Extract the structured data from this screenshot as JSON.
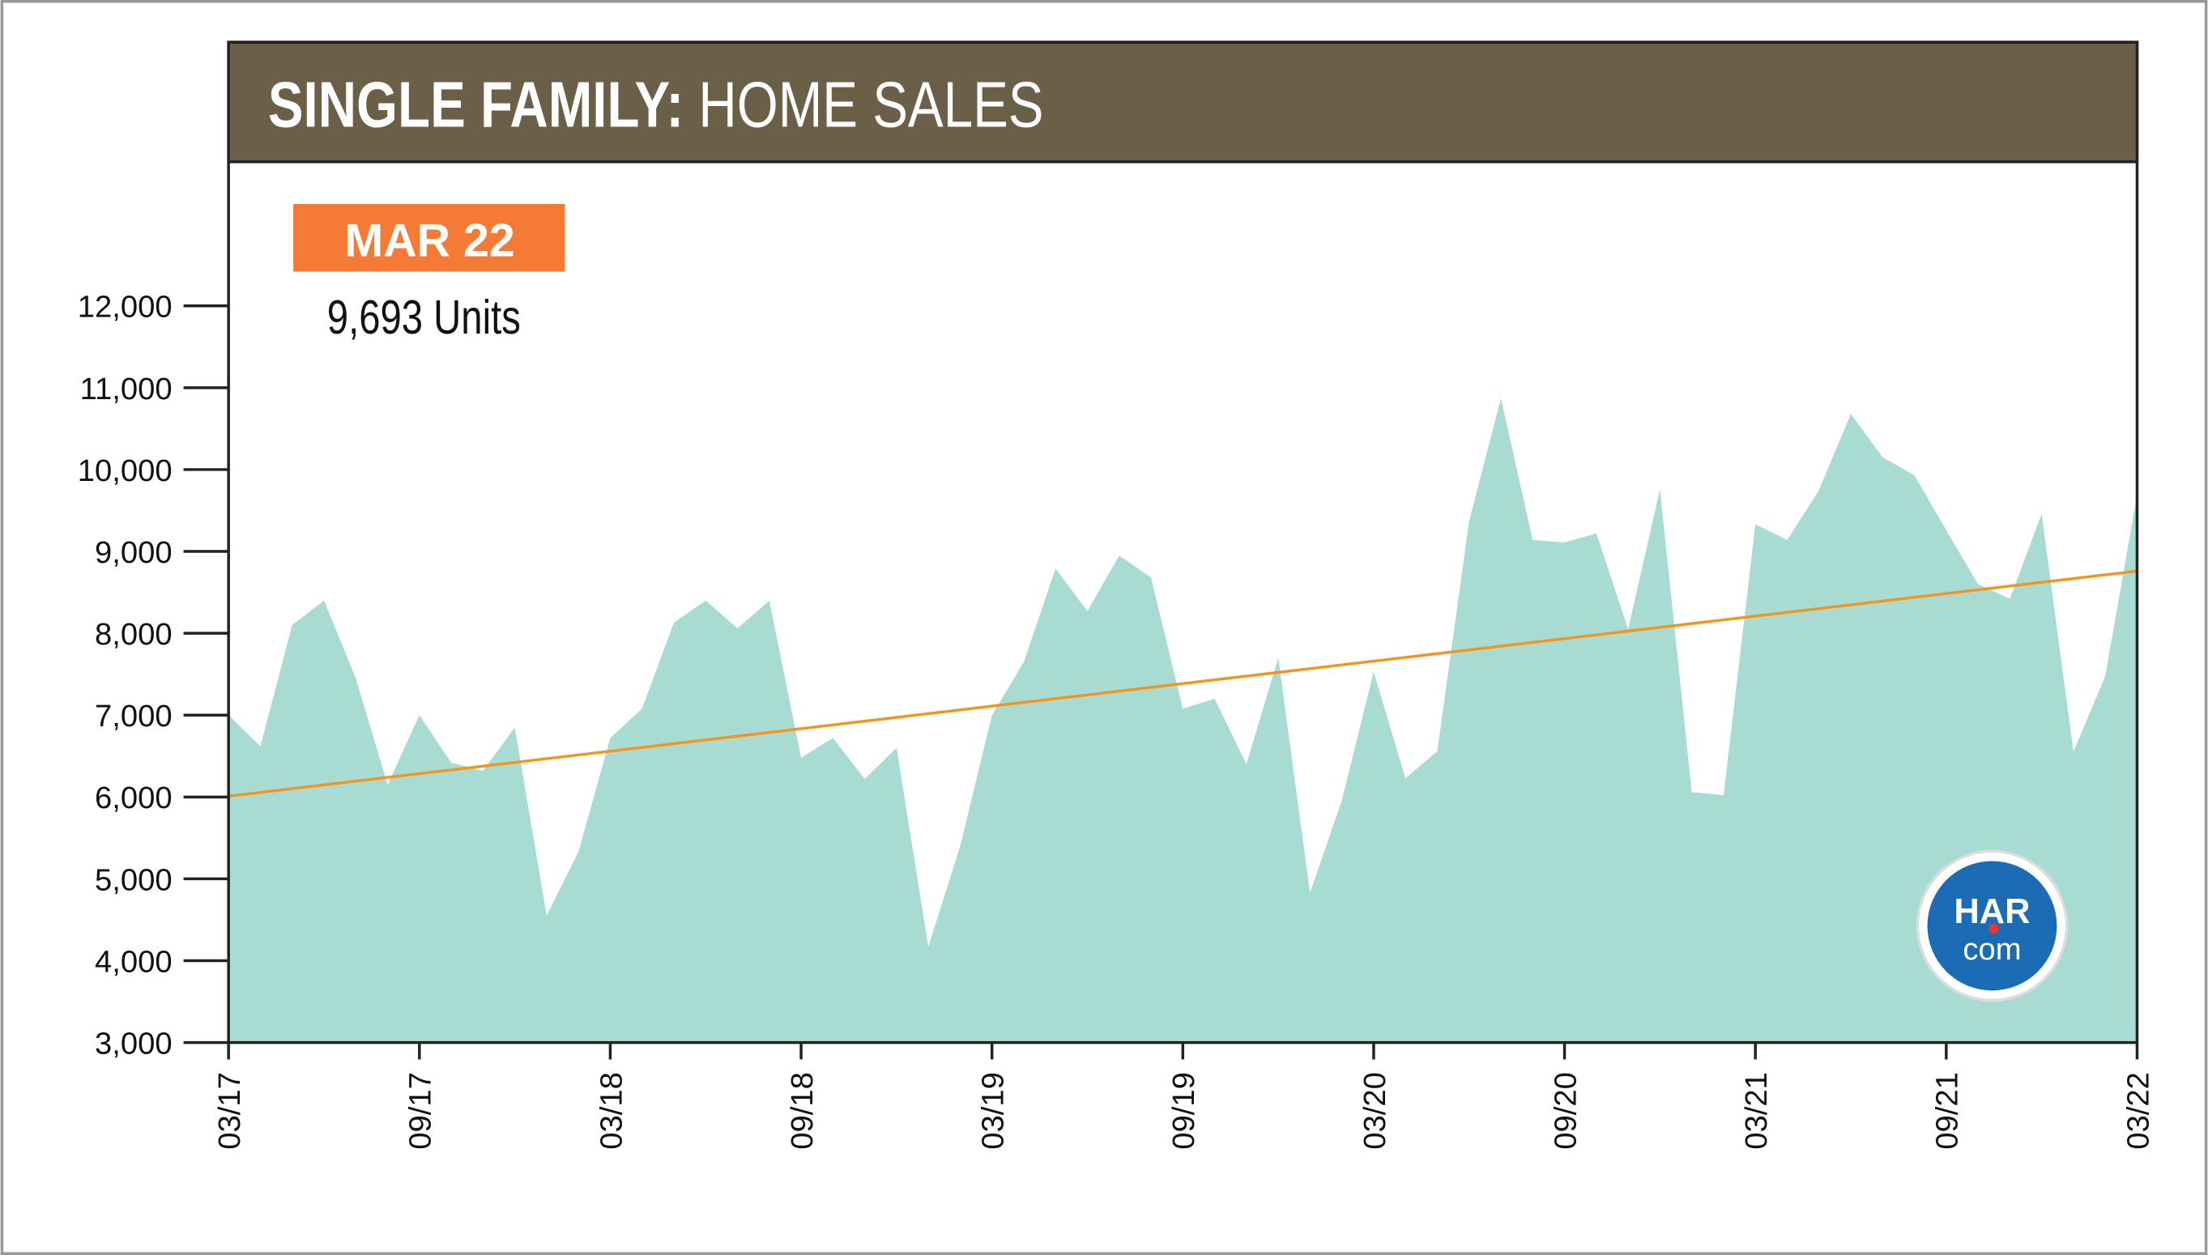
{
  "chart_data": {
    "type": "area",
    "title_lead": "SINGLE FAMILY:",
    "title": "HOME SALES",
    "annotation": {
      "badge": "MAR 22",
      "text": "9,693 Units"
    },
    "logo": {
      "top": "HAR",
      "bottom": "com"
    },
    "categories": [
      "03/17",
      null,
      null,
      null,
      null,
      null,
      "09/17",
      null,
      null,
      null,
      null,
      null,
      "03/18",
      null,
      null,
      null,
      null,
      null,
      "09/18",
      null,
      null,
      null,
      null,
      null,
      "03/19",
      null,
      null,
      null,
      null,
      null,
      "09/19",
      null,
      null,
      null,
      null,
      null,
      "03/20",
      null,
      null,
      null,
      null,
      null,
      "09/20",
      null,
      null,
      null,
      null,
      null,
      "03/21",
      null,
      null,
      null,
      null,
      null,
      "09/21",
      null,
      null,
      null,
      null,
      null,
      "03/22"
    ],
    "values": [
      7000,
      6620,
      8100,
      8400,
      7450,
      6150,
      7000,
      6420,
      6320,
      6850,
      4550,
      5330,
      6720,
      7080,
      8130,
      8400,
      8060,
      8400,
      6480,
      6720,
      6220,
      6600,
      4170,
      5400,
      7000,
      7650,
      8790,
      8270,
      8950,
      8680,
      7080,
      7200,
      6400,
      7700,
      4830,
      5960,
      7530,
      6230,
      6560,
      9370,
      10870,
      9140,
      9110,
      9220,
      8050,
      9760,
      6060,
      6020,
      9330,
      9140,
      9750,
      10680,
      10150,
      9930,
      9260,
      8600,
      8420,
      9460,
      6550,
      7480,
      9693
    ],
    "color": "#a8dcd3",
    "trend": {
      "color": "#f39420",
      "start": 6010,
      "end": 8760
    },
    "ylim": [
      3000,
      13760
    ],
    "yticks": [
      {
        "value": 3000,
        "label": "3,000"
      },
      {
        "value": 4000,
        "label": "4,000"
      },
      {
        "value": 5000,
        "label": "5,000"
      },
      {
        "value": 6000,
        "label": "6,000"
      },
      {
        "value": 7000,
        "label": "7,000"
      },
      {
        "value": 8000,
        "label": "8,000"
      },
      {
        "value": 9000,
        "label": "9,000"
      },
      {
        "value": 10000,
        "label": "10,000"
      },
      {
        "value": 11000,
        "label": "11,000"
      },
      {
        "value": 12000,
        "label": "12,000"
      }
    ]
  }
}
